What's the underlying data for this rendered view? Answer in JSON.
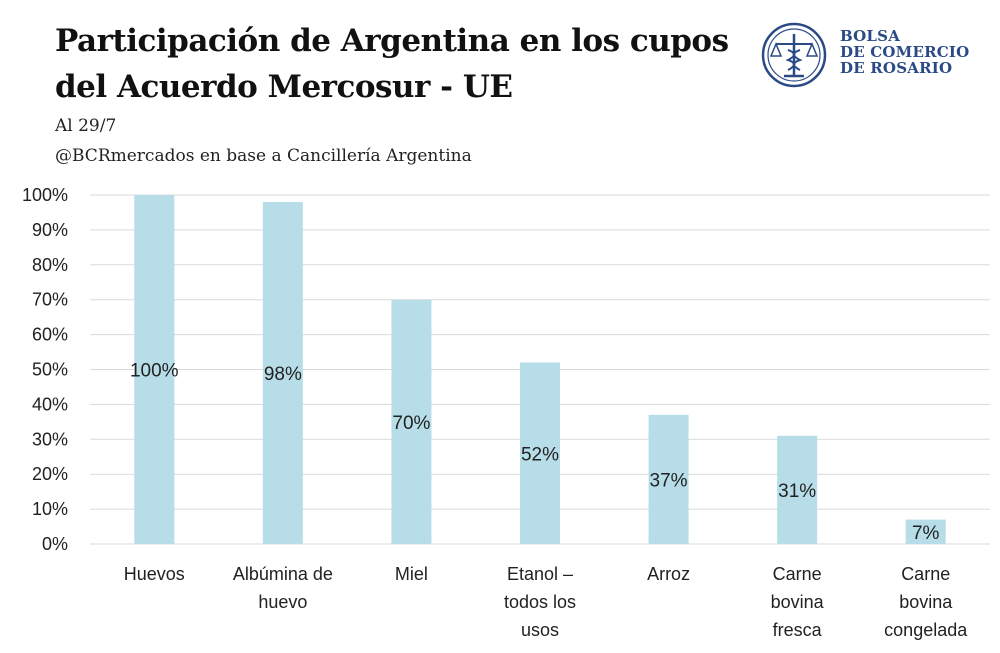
{
  "header": {
    "title_line1": "Participación de Argentina en los cupos",
    "title_line2": "del Acuerdo Mercosur - UE",
    "subtitle": "Al 29/7",
    "source": "@BCRmercados en base a Cancillería Argentina"
  },
  "logo": {
    "line1": "BOLSA",
    "line2": "DE COMERCIO",
    "line3": "DE ROSARIO",
    "icon": "bcr-seal-icon",
    "color": "#2a4a86"
  },
  "chart_data": {
    "type": "bar",
    "title": "Participación de Argentina en los cupos del Acuerdo Mercosur - UE",
    "categories": [
      [
        "Huevos"
      ],
      [
        "Albúmina de",
        "huevo"
      ],
      [
        "Miel"
      ],
      [
        "Etanol –",
        "todos los",
        "usos"
      ],
      [
        "Arroz"
      ],
      [
        "Carne",
        "bovina",
        "fresca"
      ],
      [
        "Carne",
        "bovina",
        "congelada"
      ]
    ],
    "values": [
      100,
      98,
      70,
      52,
      37,
      31,
      7
    ],
    "data_labels": [
      "100%",
      "98%",
      "70%",
      "52%",
      "37%",
      "31%",
      "7%"
    ],
    "yticks": [
      "0%",
      "10%",
      "20%",
      "30%",
      "40%",
      "50%",
      "60%",
      "70%",
      "80%",
      "90%",
      "100%"
    ],
    "ylim": [
      0,
      100
    ],
    "grid": true,
    "bar_color": "#b7dde8",
    "grid_color": "#d9d9d9"
  }
}
